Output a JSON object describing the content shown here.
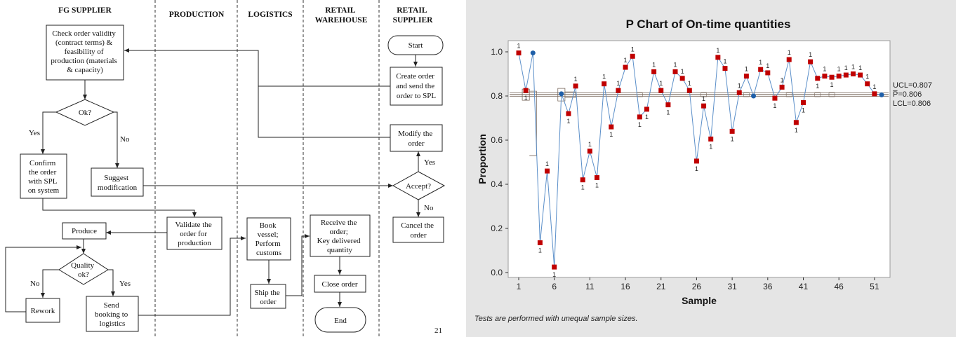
{
  "flowchart": {
    "lanes": [
      {
        "id": "fg",
        "label_lines": [
          "FG SUPPLIER"
        ]
      },
      {
        "id": "prod",
        "label_lines": [
          "PRODUCTION"
        ]
      },
      {
        "id": "log",
        "label_lines": [
          "LOGISTICS"
        ]
      },
      {
        "id": "rw",
        "label_lines": [
          "RETAIL",
          "WAREHOUSE"
        ]
      },
      {
        "id": "rs",
        "label_lines": [
          "RETAIL",
          "SUPPLIER"
        ]
      }
    ],
    "nodes": {
      "check": [
        "Check order validity",
        "(contract terms) &",
        "feasibility of",
        "production (materials",
        "& capacity)"
      ],
      "ok": [
        "Ok?"
      ],
      "confirm": [
        "Confirm",
        "the order",
        "with SPL",
        "on system"
      ],
      "suggest": [
        "Suggest",
        "modification"
      ],
      "produce": [
        "Produce"
      ],
      "quality": [
        "Quality",
        "ok?"
      ],
      "rework": [
        "Rework"
      ],
      "send": [
        "Send",
        "booking to",
        "logistics"
      ],
      "validate": [
        "Validate the",
        "order for",
        "production"
      ],
      "book": [
        "Book",
        "vessel;",
        "Perform",
        "customs"
      ],
      "ship": [
        "Ship the",
        "order"
      ],
      "receive": [
        "Receive the",
        "order;",
        "Key delivered",
        "quantity"
      ],
      "close": [
        "Close order"
      ],
      "end": [
        "End"
      ],
      "start": [
        "Start"
      ],
      "create": [
        "Create order",
        "and send the",
        "order to SPL"
      ],
      "modify": [
        "Modify the",
        "order"
      ],
      "accept": [
        "Accept?"
      ],
      "cancel": [
        "Cancel the",
        "order"
      ]
    },
    "edge_labels": {
      "ok_yes": "Yes",
      "ok_no": "No",
      "quality_no": "No",
      "quality_yes": "Yes",
      "accept_yes": "Yes",
      "accept_no": "No"
    },
    "page_number": "21"
  },
  "chart_data": {
    "type": "line",
    "title": "P Chart of On-time quantities",
    "xlabel": "Sample",
    "ylabel": "Proportion",
    "xlim": [
      0,
      52.5
    ],
    "ylim": [
      -0.02,
      1.04
    ],
    "x_ticks": [
      1,
      6,
      11,
      16,
      21,
      26,
      31,
      36,
      41,
      46,
      51
    ],
    "y_ticks": [
      0.0,
      0.2,
      0.4,
      0.6,
      0.8,
      1.0
    ],
    "y_tick_labels": [
      "0.0",
      "0.2",
      "0.4",
      "0.6",
      "0.8",
      "1.0"
    ],
    "center_line": 0.806,
    "labels": {
      "ucl": "UCL=0.807",
      "pbar": "P̅=0.806",
      "lcl": "LCL=0.806"
    },
    "footnote": "Tests are performed with unequal sample sizes.",
    "out_of_control_marker": "1",
    "colors": {
      "series_line": "#5b8fc9",
      "out_marker": "#c00000",
      "in_marker": "#1f5fa8",
      "limit_line": "#7a6a5e",
      "plot_bg": "#ffffff",
      "frame_bg": "#e5e5e5"
    },
    "points": [
      {
        "x": 1,
        "y": 0.995,
        "out": true
      },
      {
        "x": 2,
        "y": 0.825,
        "out": true
      },
      {
        "x": 3,
        "y": 0.995,
        "out": false
      },
      {
        "x": 4,
        "y": 0.135,
        "out": true
      },
      {
        "x": 5,
        "y": 0.46,
        "out": true
      },
      {
        "x": 6,
        "y": 0.025,
        "out": true
      },
      {
        "x": 7,
        "y": 0.81,
        "out": false
      },
      {
        "x": 8,
        "y": 0.72,
        "out": true
      },
      {
        "x": 9,
        "y": 0.845,
        "out": true
      },
      {
        "x": 10,
        "y": 0.42,
        "out": true
      },
      {
        "x": 11,
        "y": 0.55,
        "out": true
      },
      {
        "x": 12,
        "y": 0.43,
        "out": true
      },
      {
        "x": 13,
        "y": 0.855,
        "out": true
      },
      {
        "x": 14,
        "y": 0.66,
        "out": true
      },
      {
        "x": 15,
        "y": 0.825,
        "out": true
      },
      {
        "x": 16,
        "y": 0.93,
        "out": true
      },
      {
        "x": 17,
        "y": 0.98,
        "out": true
      },
      {
        "x": 18,
        "y": 0.705,
        "out": true
      },
      {
        "x": 19,
        "y": 0.74,
        "out": true
      },
      {
        "x": 20,
        "y": 0.91,
        "out": true
      },
      {
        "x": 21,
        "y": 0.825,
        "out": true
      },
      {
        "x": 22,
        "y": 0.76,
        "out": true
      },
      {
        "x": 23,
        "y": 0.91,
        "out": true
      },
      {
        "x": 24,
        "y": 0.88,
        "out": true
      },
      {
        "x": 25,
        "y": 0.825,
        "out": true
      },
      {
        "x": 26,
        "y": 0.505,
        "out": true
      },
      {
        "x": 27,
        "y": 0.755,
        "out": true
      },
      {
        "x": 28,
        "y": 0.605,
        "out": true
      },
      {
        "x": 29,
        "y": 0.975,
        "out": true
      },
      {
        "x": 30,
        "y": 0.925,
        "out": true
      },
      {
        "x": 31,
        "y": 0.64,
        "out": true
      },
      {
        "x": 32,
        "y": 0.815,
        "out": true
      },
      {
        "x": 33,
        "y": 0.89,
        "out": true
      },
      {
        "x": 34,
        "y": 0.8,
        "out": false
      },
      {
        "x": 35,
        "y": 0.92,
        "out": true
      },
      {
        "x": 36,
        "y": 0.905,
        "out": true
      },
      {
        "x": 37,
        "y": 0.79,
        "out": true
      },
      {
        "x": 38,
        "y": 0.84,
        "out": true
      },
      {
        "x": 39,
        "y": 0.965,
        "out": true
      },
      {
        "x": 40,
        "y": 0.68,
        "out": true
      },
      {
        "x": 41,
        "y": 0.77,
        "out": true
      },
      {
        "x": 42,
        "y": 0.955,
        "out": true
      },
      {
        "x": 43,
        "y": 0.88,
        "out": true
      },
      {
        "x": 44,
        "y": 0.89,
        "out": true
      },
      {
        "x": 45,
        "y": 0.885,
        "out": true
      },
      {
        "x": 46,
        "y": 0.89,
        "out": true
      },
      {
        "x": 47,
        "y": 0.895,
        "out": true
      },
      {
        "x": 48,
        "y": 0.9,
        "out": true
      },
      {
        "x": 49,
        "y": 0.895,
        "out": true
      },
      {
        "x": 50,
        "y": 0.855,
        "out": true
      },
      {
        "x": 51,
        "y": 0.81,
        "out": true
      },
      {
        "x": 52,
        "y": 0.805,
        "out": false
      }
    ]
  }
}
